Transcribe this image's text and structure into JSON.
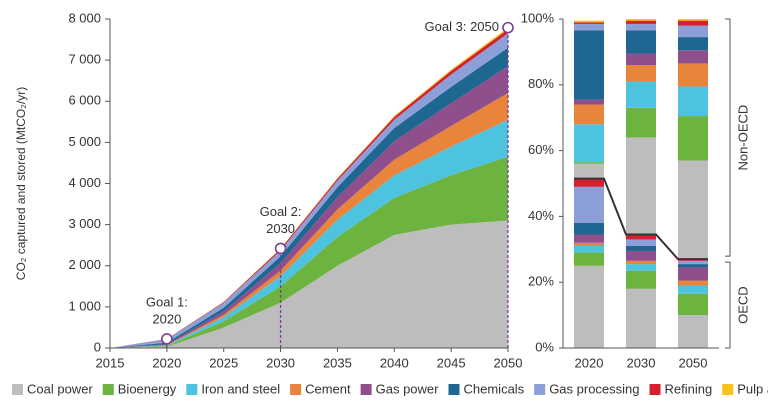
{
  "chart_data": [
    {
      "type": "area",
      "ylabel": "CO₂ captured and stored (MtCO₂/yr)",
      "x": [
        2015,
        2020,
        2025,
        2030,
        2035,
        2040,
        2045,
        2050
      ],
      "xlim": [
        2015,
        2050
      ],
      "xticks": [
        2015,
        2020,
        2025,
        2030,
        2035,
        2040,
        2045,
        2050
      ],
      "ylim": [
        0,
        8000
      ],
      "yticks": [
        0,
        {
          "value": 1000,
          "label": "1 000"
        },
        {
          "value": 2000,
          "label": "2 000"
        },
        {
          "value": 3000,
          "label": "3 000"
        },
        {
          "value": 4000,
          "label": "4 000"
        },
        {
          "value": 5000,
          "label": "5 000"
        },
        {
          "value": 6000,
          "label": "6 000"
        },
        {
          "value": 7000,
          "label": "7 000"
        },
        {
          "value": 8000,
          "label": "8 000"
        }
      ],
      "series": [
        {
          "name": "Coal power",
          "color": "#bdbdbd",
          "values": [
            0,
            30,
            500,
            1100,
            2000,
            2750,
            3000,
            3100
          ]
        },
        {
          "name": "Bioenergy",
          "color": "#6cb33f",
          "values": [
            0,
            20,
            150,
            400,
            700,
            900,
            1200,
            1550
          ]
        },
        {
          "name": "Iron and steel",
          "color": "#4ec3df",
          "values": [
            0,
            10,
            100,
            250,
            420,
            550,
            700,
            900
          ]
        },
        {
          "name": "Cement",
          "color": "#e8843c",
          "values": [
            0,
            10,
            60,
            130,
            250,
            380,
            500,
            650
          ]
        },
        {
          "name": "Gas power",
          "color": "#8e4f8c",
          "values": [
            0,
            20,
            80,
            180,
            300,
            450,
            550,
            650
          ]
        },
        {
          "name": "Chemicals",
          "color": "#1d6790",
          "values": [
            0,
            40,
            90,
            170,
            240,
            320,
            400,
            450
          ]
        },
        {
          "name": "Gas processing",
          "color": "#8c9fd8",
          "values": [
            0,
            80,
            120,
            140,
            160,
            200,
            300,
            350
          ]
        },
        {
          "name": "Refining",
          "color": "#d52030",
          "values": [
            0,
            10,
            20,
            40,
            50,
            70,
            90,
            100
          ]
        },
        {
          "name": "Pulp and paper",
          "color": "#f6c419",
          "values": [
            0,
            0,
            5,
            10,
            10,
            20,
            30,
            40
          ]
        }
      ],
      "annotations": [
        {
          "text": [
            "Goal 1:",
            "2020"
          ],
          "x": 2020,
          "y": 220
        },
        {
          "text": [
            "Goal 2:",
            "2030"
          ],
          "x": 2030,
          "y": 2420
        },
        {
          "text": [
            "Goal 3: 2050"
          ],
          "x": 2050,
          "y": 7790
        }
      ]
    },
    {
      "type": "stacked_bar_100",
      "categories": [
        "2020",
        "2030",
        "2050"
      ],
      "ylim": [
        0,
        100
      ],
      "yticks": [
        {
          "value": 0,
          "label": "0%"
        },
        {
          "value": 20,
          "label": "20%"
        },
        {
          "value": 40,
          "label": "40%"
        },
        {
          "value": 60,
          "label": "60%"
        },
        {
          "value": 80,
          "label": "80%"
        },
        {
          "value": 100,
          "label": "100%"
        }
      ],
      "groups": [
        {
          "name": "OECD",
          "series": [
            {
              "values": [
                25,
                18,
                10
              ]
            },
            {
              "values": [
                4,
                5.5,
                6.5
              ]
            },
            {
              "values": [
                2,
                2,
                2.5
              ]
            },
            {
              "values": [
                1,
                1,
                1.5
              ]
            },
            {
              "values": [
                2.5,
                3,
                4
              ]
            },
            {
              "values": [
                3.5,
                1.5,
                1
              ]
            },
            {
              "values": [
                11,
                2,
                1
              ]
            },
            {
              "values": [
                2.5,
                1.5,
                0.5
              ]
            },
            {
              "values": [
                0,
                0,
                0
              ]
            }
          ]
        },
        {
          "name": "Non-OECD",
          "series": [
            {
              "values": [
                4.5,
                29.5,
                30
              ]
            },
            {
              "values": [
                0.5,
                9,
                13.5
              ]
            },
            {
              "values": [
                11.5,
                8,
                9
              ]
            },
            {
              "values": [
                6,
                5,
                7
              ]
            },
            {
              "values": [
                1.5,
                3.5,
                4
              ]
            },
            {
              "values": [
                21,
                7,
                4
              ]
            },
            {
              "values": [
                2,
                2,
                3.5
              ]
            },
            {
              "values": [
                0.5,
                1,
                1.5
              ]
            },
            {
              "values": [
                0.5,
                0.5,
                0.5
              ]
            }
          ]
        }
      ]
    }
  ]
}
